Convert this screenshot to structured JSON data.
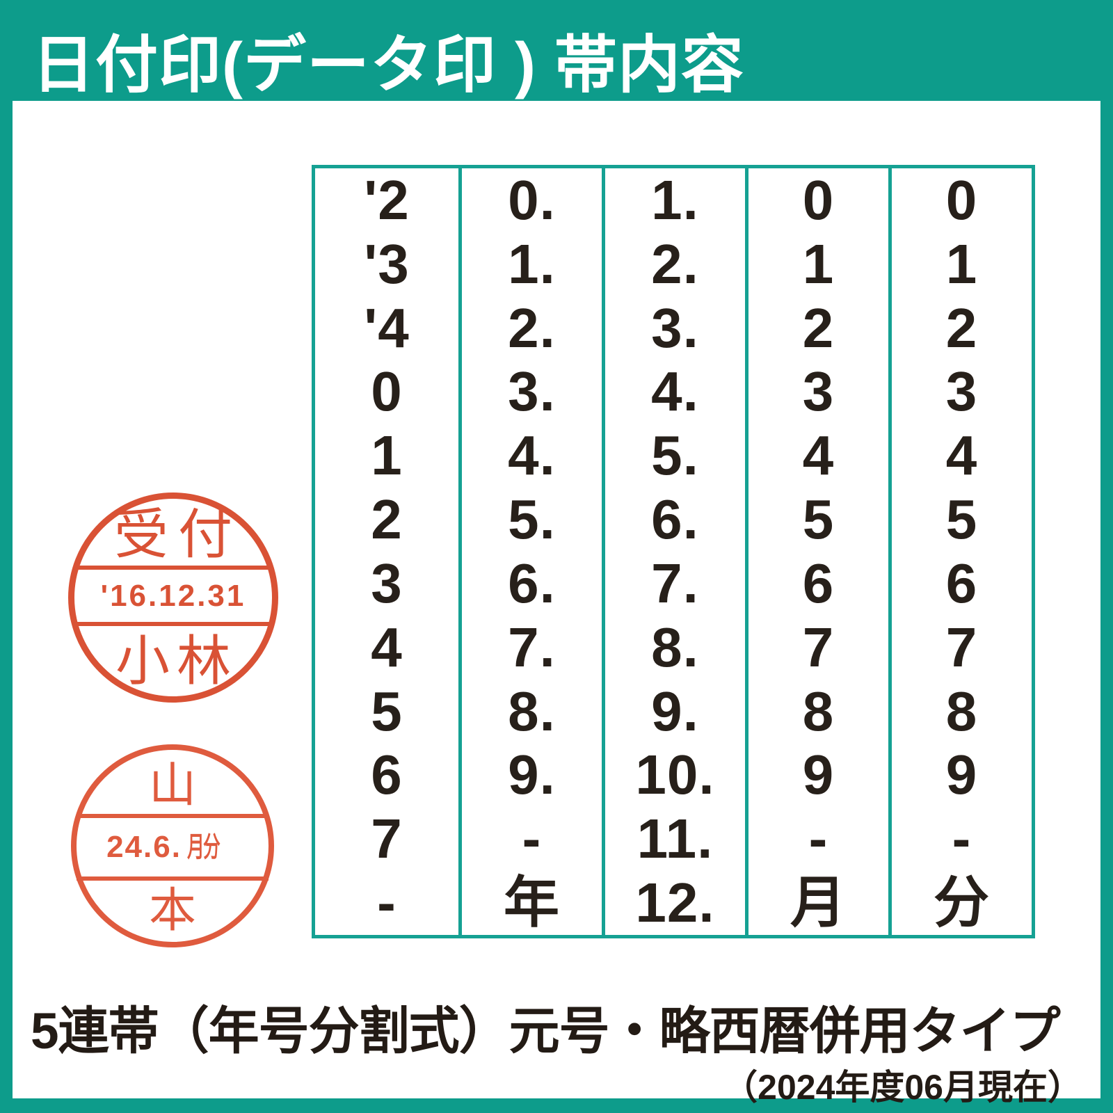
{
  "page": {
    "title": "日付印(データ印 ) 帯内容",
    "caption_main": "5連帯（年号分割式）元号・略西暦併用タイプ",
    "caption_sub": "（2024年度06月現在）"
  },
  "stamps": [
    {
      "name": "reception-date-stamp",
      "top": "受付",
      "middle": "'16.12.31",
      "bottom": "小林"
    },
    {
      "name": "yamamoto-date-stamp",
      "top": "山",
      "middle_number": "24.6.",
      "middle_unit": "月分",
      "bottom": "本"
    }
  ],
  "band_table": {
    "columns": [
      {
        "label": "band-1",
        "cells": [
          "'2",
          "'3",
          "'4",
          "0",
          "1",
          "2",
          "3",
          "4",
          "5",
          "6",
          "7",
          "-"
        ]
      },
      {
        "label": "band-2",
        "cells": [
          "0.",
          "1.",
          "2.",
          "3.",
          "4.",
          "5.",
          "6.",
          "7.",
          "8.",
          "9.",
          "-",
          "年"
        ]
      },
      {
        "label": "band-3",
        "cells": [
          "1.",
          "2.",
          "3.",
          "4.",
          "5.",
          "6.",
          "7.",
          "8.",
          "9.",
          "10.",
          "11.",
          "12."
        ]
      },
      {
        "label": "band-4",
        "cells": [
          "0",
          "1",
          "2",
          "3",
          "4",
          "5",
          "6",
          "7",
          "8",
          "9",
          "-",
          "月"
        ]
      },
      {
        "label": "band-5",
        "cells": [
          "0",
          "1",
          "2",
          "3",
          "4",
          "5",
          "6",
          "7",
          "8",
          "9",
          "-",
          "分"
        ]
      }
    ]
  },
  "colors": {
    "frame_teal": "#0D9C8B",
    "table_border_teal": "#15A193",
    "ink_black": "#27201A",
    "stamp_red_1": "#D8492B",
    "stamp_red_2": "#DE5334",
    "background_white": "#FFFFFF"
  }
}
